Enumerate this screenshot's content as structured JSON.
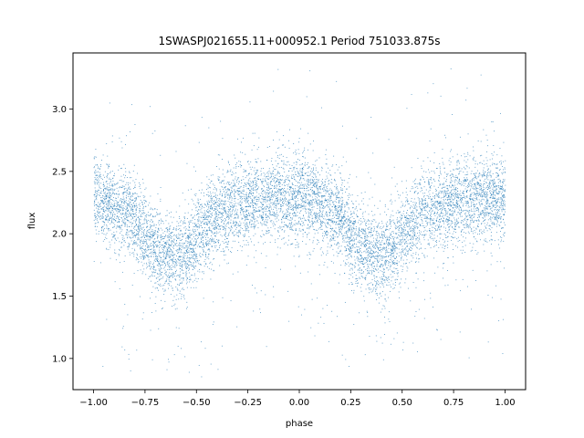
{
  "chart_data": {
    "type": "scatter",
    "title": "1SWASPJ021655.11+000952.1 Period 751033.875s",
    "xlabel": "phase",
    "ylabel": "flux",
    "xlim": [
      -1.1,
      1.1
    ],
    "ylim": [
      0.75,
      3.45
    ],
    "x_ticks": [
      -1.0,
      -0.75,
      -0.5,
      -0.25,
      0.0,
      0.25,
      0.5,
      0.75,
      1.0
    ],
    "x_tick_labels": [
      "−1.00",
      "−0.75",
      "−0.50",
      "−0.25",
      "0.00",
      "0.25",
      "0.50",
      "0.75",
      "1.00"
    ],
    "y_ticks": [
      1.0,
      1.5,
      2.0,
      2.5,
      3.0
    ],
    "y_tick_labels": [
      "1.0",
      "1.5",
      "2.0",
      "2.5",
      "3.0"
    ],
    "grid": false,
    "legend": "none",
    "marker_color": "#1f77b4",
    "phase_range": [
      -1.0,
      1.0
    ],
    "flux_curve": {
      "phase": [
        0.0,
        0.1,
        0.2,
        0.25,
        0.3,
        0.35,
        0.4,
        0.45,
        0.5,
        0.6,
        0.7,
        0.8,
        0.9,
        1.0
      ],
      "flux": [
        2.3,
        2.24,
        2.12,
        1.98,
        1.88,
        1.84,
        1.82,
        1.87,
        1.98,
        2.17,
        2.24,
        2.26,
        2.3,
        2.28
      ],
      "spread": 0.17
    }
  }
}
